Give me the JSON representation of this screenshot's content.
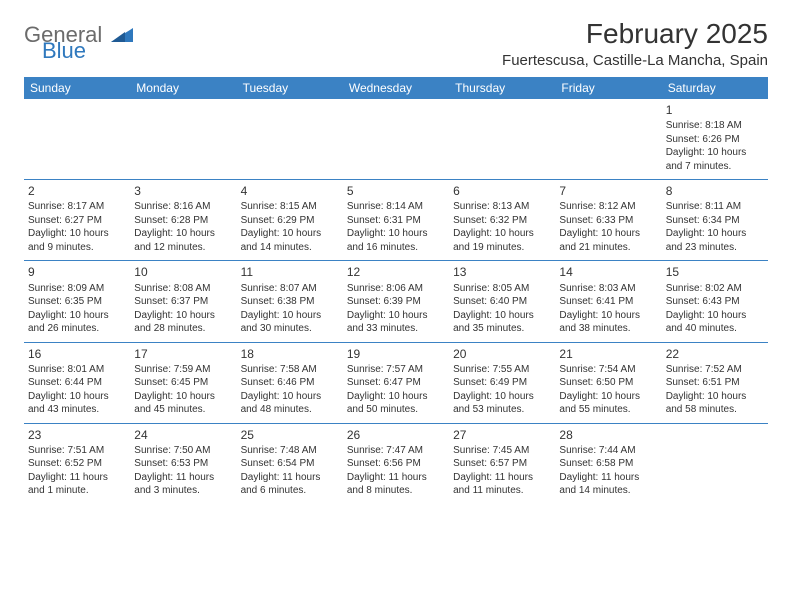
{
  "logo": {
    "general": "General",
    "blue": "Blue"
  },
  "header": {
    "title": "February 2025",
    "location": "Fuertescusa, Castille-La Mancha, Spain"
  },
  "weekdays": [
    "Sunday",
    "Monday",
    "Tuesday",
    "Wednesday",
    "Thursday",
    "Friday",
    "Saturday"
  ],
  "colors": {
    "brand": "#3b82c4",
    "text": "#333333",
    "logo_gray": "#6b6b6b",
    "logo_blue": "#2f78bd"
  },
  "weeks": [
    [
      null,
      null,
      null,
      null,
      null,
      null,
      {
        "n": "1",
        "sr": "Sunrise: 8:18 AM",
        "ss": "Sunset: 6:26 PM",
        "dl": "Daylight: 10 hours and 7 minutes."
      }
    ],
    [
      {
        "n": "2",
        "sr": "Sunrise: 8:17 AM",
        "ss": "Sunset: 6:27 PM",
        "dl": "Daylight: 10 hours and 9 minutes."
      },
      {
        "n": "3",
        "sr": "Sunrise: 8:16 AM",
        "ss": "Sunset: 6:28 PM",
        "dl": "Daylight: 10 hours and 12 minutes."
      },
      {
        "n": "4",
        "sr": "Sunrise: 8:15 AM",
        "ss": "Sunset: 6:29 PM",
        "dl": "Daylight: 10 hours and 14 minutes."
      },
      {
        "n": "5",
        "sr": "Sunrise: 8:14 AM",
        "ss": "Sunset: 6:31 PM",
        "dl": "Daylight: 10 hours and 16 minutes."
      },
      {
        "n": "6",
        "sr": "Sunrise: 8:13 AM",
        "ss": "Sunset: 6:32 PM",
        "dl": "Daylight: 10 hours and 19 minutes."
      },
      {
        "n": "7",
        "sr": "Sunrise: 8:12 AM",
        "ss": "Sunset: 6:33 PM",
        "dl": "Daylight: 10 hours and 21 minutes."
      },
      {
        "n": "8",
        "sr": "Sunrise: 8:11 AM",
        "ss": "Sunset: 6:34 PM",
        "dl": "Daylight: 10 hours and 23 minutes."
      }
    ],
    [
      {
        "n": "9",
        "sr": "Sunrise: 8:09 AM",
        "ss": "Sunset: 6:35 PM",
        "dl": "Daylight: 10 hours and 26 minutes."
      },
      {
        "n": "10",
        "sr": "Sunrise: 8:08 AM",
        "ss": "Sunset: 6:37 PM",
        "dl": "Daylight: 10 hours and 28 minutes."
      },
      {
        "n": "11",
        "sr": "Sunrise: 8:07 AM",
        "ss": "Sunset: 6:38 PM",
        "dl": "Daylight: 10 hours and 30 minutes."
      },
      {
        "n": "12",
        "sr": "Sunrise: 8:06 AM",
        "ss": "Sunset: 6:39 PM",
        "dl": "Daylight: 10 hours and 33 minutes."
      },
      {
        "n": "13",
        "sr": "Sunrise: 8:05 AM",
        "ss": "Sunset: 6:40 PM",
        "dl": "Daylight: 10 hours and 35 minutes."
      },
      {
        "n": "14",
        "sr": "Sunrise: 8:03 AM",
        "ss": "Sunset: 6:41 PM",
        "dl": "Daylight: 10 hours and 38 minutes."
      },
      {
        "n": "15",
        "sr": "Sunrise: 8:02 AM",
        "ss": "Sunset: 6:43 PM",
        "dl": "Daylight: 10 hours and 40 minutes."
      }
    ],
    [
      {
        "n": "16",
        "sr": "Sunrise: 8:01 AM",
        "ss": "Sunset: 6:44 PM",
        "dl": "Daylight: 10 hours and 43 minutes."
      },
      {
        "n": "17",
        "sr": "Sunrise: 7:59 AM",
        "ss": "Sunset: 6:45 PM",
        "dl": "Daylight: 10 hours and 45 minutes."
      },
      {
        "n": "18",
        "sr": "Sunrise: 7:58 AM",
        "ss": "Sunset: 6:46 PM",
        "dl": "Daylight: 10 hours and 48 minutes."
      },
      {
        "n": "19",
        "sr": "Sunrise: 7:57 AM",
        "ss": "Sunset: 6:47 PM",
        "dl": "Daylight: 10 hours and 50 minutes."
      },
      {
        "n": "20",
        "sr": "Sunrise: 7:55 AM",
        "ss": "Sunset: 6:49 PM",
        "dl": "Daylight: 10 hours and 53 minutes."
      },
      {
        "n": "21",
        "sr": "Sunrise: 7:54 AM",
        "ss": "Sunset: 6:50 PM",
        "dl": "Daylight: 10 hours and 55 minutes."
      },
      {
        "n": "22",
        "sr": "Sunrise: 7:52 AM",
        "ss": "Sunset: 6:51 PM",
        "dl": "Daylight: 10 hours and 58 minutes."
      }
    ],
    [
      {
        "n": "23",
        "sr": "Sunrise: 7:51 AM",
        "ss": "Sunset: 6:52 PM",
        "dl": "Daylight: 11 hours and 1 minute."
      },
      {
        "n": "24",
        "sr": "Sunrise: 7:50 AM",
        "ss": "Sunset: 6:53 PM",
        "dl": "Daylight: 11 hours and 3 minutes."
      },
      {
        "n": "25",
        "sr": "Sunrise: 7:48 AM",
        "ss": "Sunset: 6:54 PM",
        "dl": "Daylight: 11 hours and 6 minutes."
      },
      {
        "n": "26",
        "sr": "Sunrise: 7:47 AM",
        "ss": "Sunset: 6:56 PM",
        "dl": "Daylight: 11 hours and 8 minutes."
      },
      {
        "n": "27",
        "sr": "Sunrise: 7:45 AM",
        "ss": "Sunset: 6:57 PM",
        "dl": "Daylight: 11 hours and 11 minutes."
      },
      {
        "n": "28",
        "sr": "Sunrise: 7:44 AM",
        "ss": "Sunset: 6:58 PM",
        "dl": "Daylight: 11 hours and 14 minutes."
      },
      null
    ]
  ]
}
